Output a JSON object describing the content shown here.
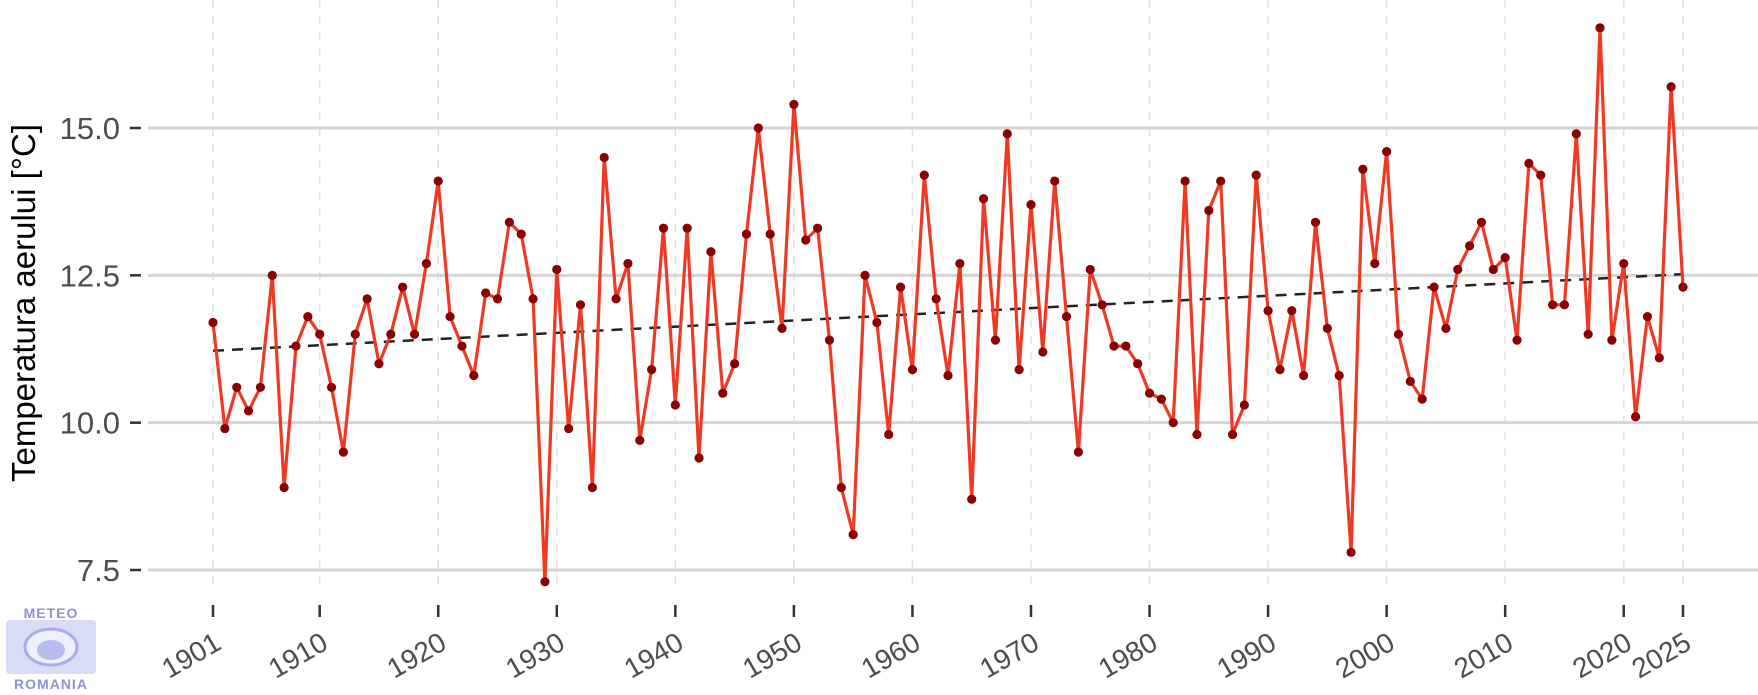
{
  "chart_data": {
    "type": "line",
    "title": "",
    "xlabel": "",
    "ylabel": "Temperatura aerului [°C]",
    "xlim": [
      1897,
      2031
    ],
    "ylim": [
      7.0,
      17.0
    ],
    "yticks": [
      7.5,
      10.0,
      12.5,
      15.0
    ],
    "ytick_labels": [
      "7.5",
      "10.0",
      "12.5",
      "15.0"
    ],
    "xticks": [
      1901,
      1910,
      1920,
      1930,
      1940,
      1950,
      1960,
      1970,
      1980,
      1990,
      2000,
      2010,
      2020,
      2025
    ],
    "xtick_labels": [
      "1901",
      "1910",
      "1920",
      "1930",
      "1940",
      "1950",
      "1960",
      "1970",
      "1980",
      "1990",
      "2000",
      "2010",
      "2020",
      "2025"
    ],
    "grid": {
      "horizontal": true,
      "vertical_dashed": true
    },
    "legend": "none",
    "series": [
      {
        "color": "#ee3a24",
        "marker_color": "#8b0000",
        "x": [
          1901,
          1902,
          1903,
          1904,
          1905,
          1906,
          1907,
          1908,
          1909,
          1910,
          1911,
          1912,
          1913,
          1914,
          1915,
          1916,
          1917,
          1918,
          1919,
          1920,
          1921,
          1922,
          1923,
          1924,
          1925,
          1926,
          1927,
          1928,
          1929,
          1930,
          1931,
          1932,
          1933,
          1934,
          1935,
          1936,
          1937,
          1938,
          1939,
          1940,
          1941,
          1942,
          1943,
          1944,
          1945,
          1946,
          1947,
          1948,
          1949,
          1950,
          1951,
          1952,
          1953,
          1954,
          1955,
          1956,
          1957,
          1958,
          1959,
          1960,
          1961,
          1962,
          1963,
          1964,
          1965,
          1966,
          1967,
          1968,
          1969,
          1970,
          1971,
          1972,
          1973,
          1974,
          1975,
          1976,
          1977,
          1978,
          1979,
          1980,
          1981,
          1982,
          1983,
          1984,
          1985,
          1986,
          1987,
          1988,
          1989,
          1990,
          1991,
          1992,
          1993,
          1994,
          1995,
          1996,
          1997,
          1998,
          1999,
          2000,
          2001,
          2002,
          2003,
          2004,
          2005,
          2006,
          2007,
          2008,
          2009,
          2010,
          2011,
          2012,
          2013,
          2014,
          2015,
          2016,
          2017,
          2018,
          2019,
          2020,
          2021,
          2022,
          2023,
          2024,
          2025
        ],
        "values": [
          11.7,
          9.9,
          10.6,
          10.2,
          10.6,
          12.5,
          8.9,
          11.3,
          11.8,
          11.5,
          10.6,
          9.5,
          11.5,
          12.1,
          11.0,
          11.5,
          12.3,
          11.5,
          12.7,
          14.1,
          11.8,
          11.3,
          10.8,
          12.2,
          12.1,
          13.4,
          13.2,
          12.1,
          7.3,
          12.6,
          9.9,
          12.0,
          8.9,
          14.5,
          12.1,
          12.7,
          9.7,
          10.9,
          13.3,
          10.3,
          13.3,
          9.4,
          12.9,
          10.5,
          11.0,
          13.2,
          15.0,
          13.2,
          11.6,
          15.4,
          13.1,
          13.3,
          11.4,
          8.9,
          8.1,
          12.5,
          11.7,
          9.8,
          12.3,
          10.9,
          14.2,
          12.1,
          10.8,
          12.7,
          8.7,
          13.8,
          11.4,
          14.9,
          10.9,
          13.7,
          11.2,
          14.1,
          11.8,
          9.5,
          12.6,
          12.0,
          11.3,
          11.3,
          11.0,
          10.5,
          10.4,
          10.0,
          14.1,
          9.8,
          13.6,
          14.1,
          9.8,
          10.3,
          14.2,
          11.9,
          10.9,
          11.9,
          10.8,
          13.4,
          11.6,
          10.8,
          7.8,
          14.3,
          12.7,
          14.6,
          11.5,
          10.7,
          10.4,
          12.3,
          11.6,
          12.6,
          13.0,
          13.4,
          12.6,
          12.8,
          11.4,
          14.4,
          14.2,
          12.0,
          12.0,
          14.9,
          11.5,
          16.7,
          11.4,
          12.7,
          10.1,
          11.8,
          11.1,
          15.7,
          12.3
        ]
      }
    ],
    "trend": {
      "x": [
        1901,
        2025
      ],
      "values": [
        11.22,
        12.52
      ],
      "color": "#222222",
      "style": "dashed"
    }
  },
  "logo": {
    "top_text": "METEO",
    "bottom_text": "ROMANIA"
  }
}
